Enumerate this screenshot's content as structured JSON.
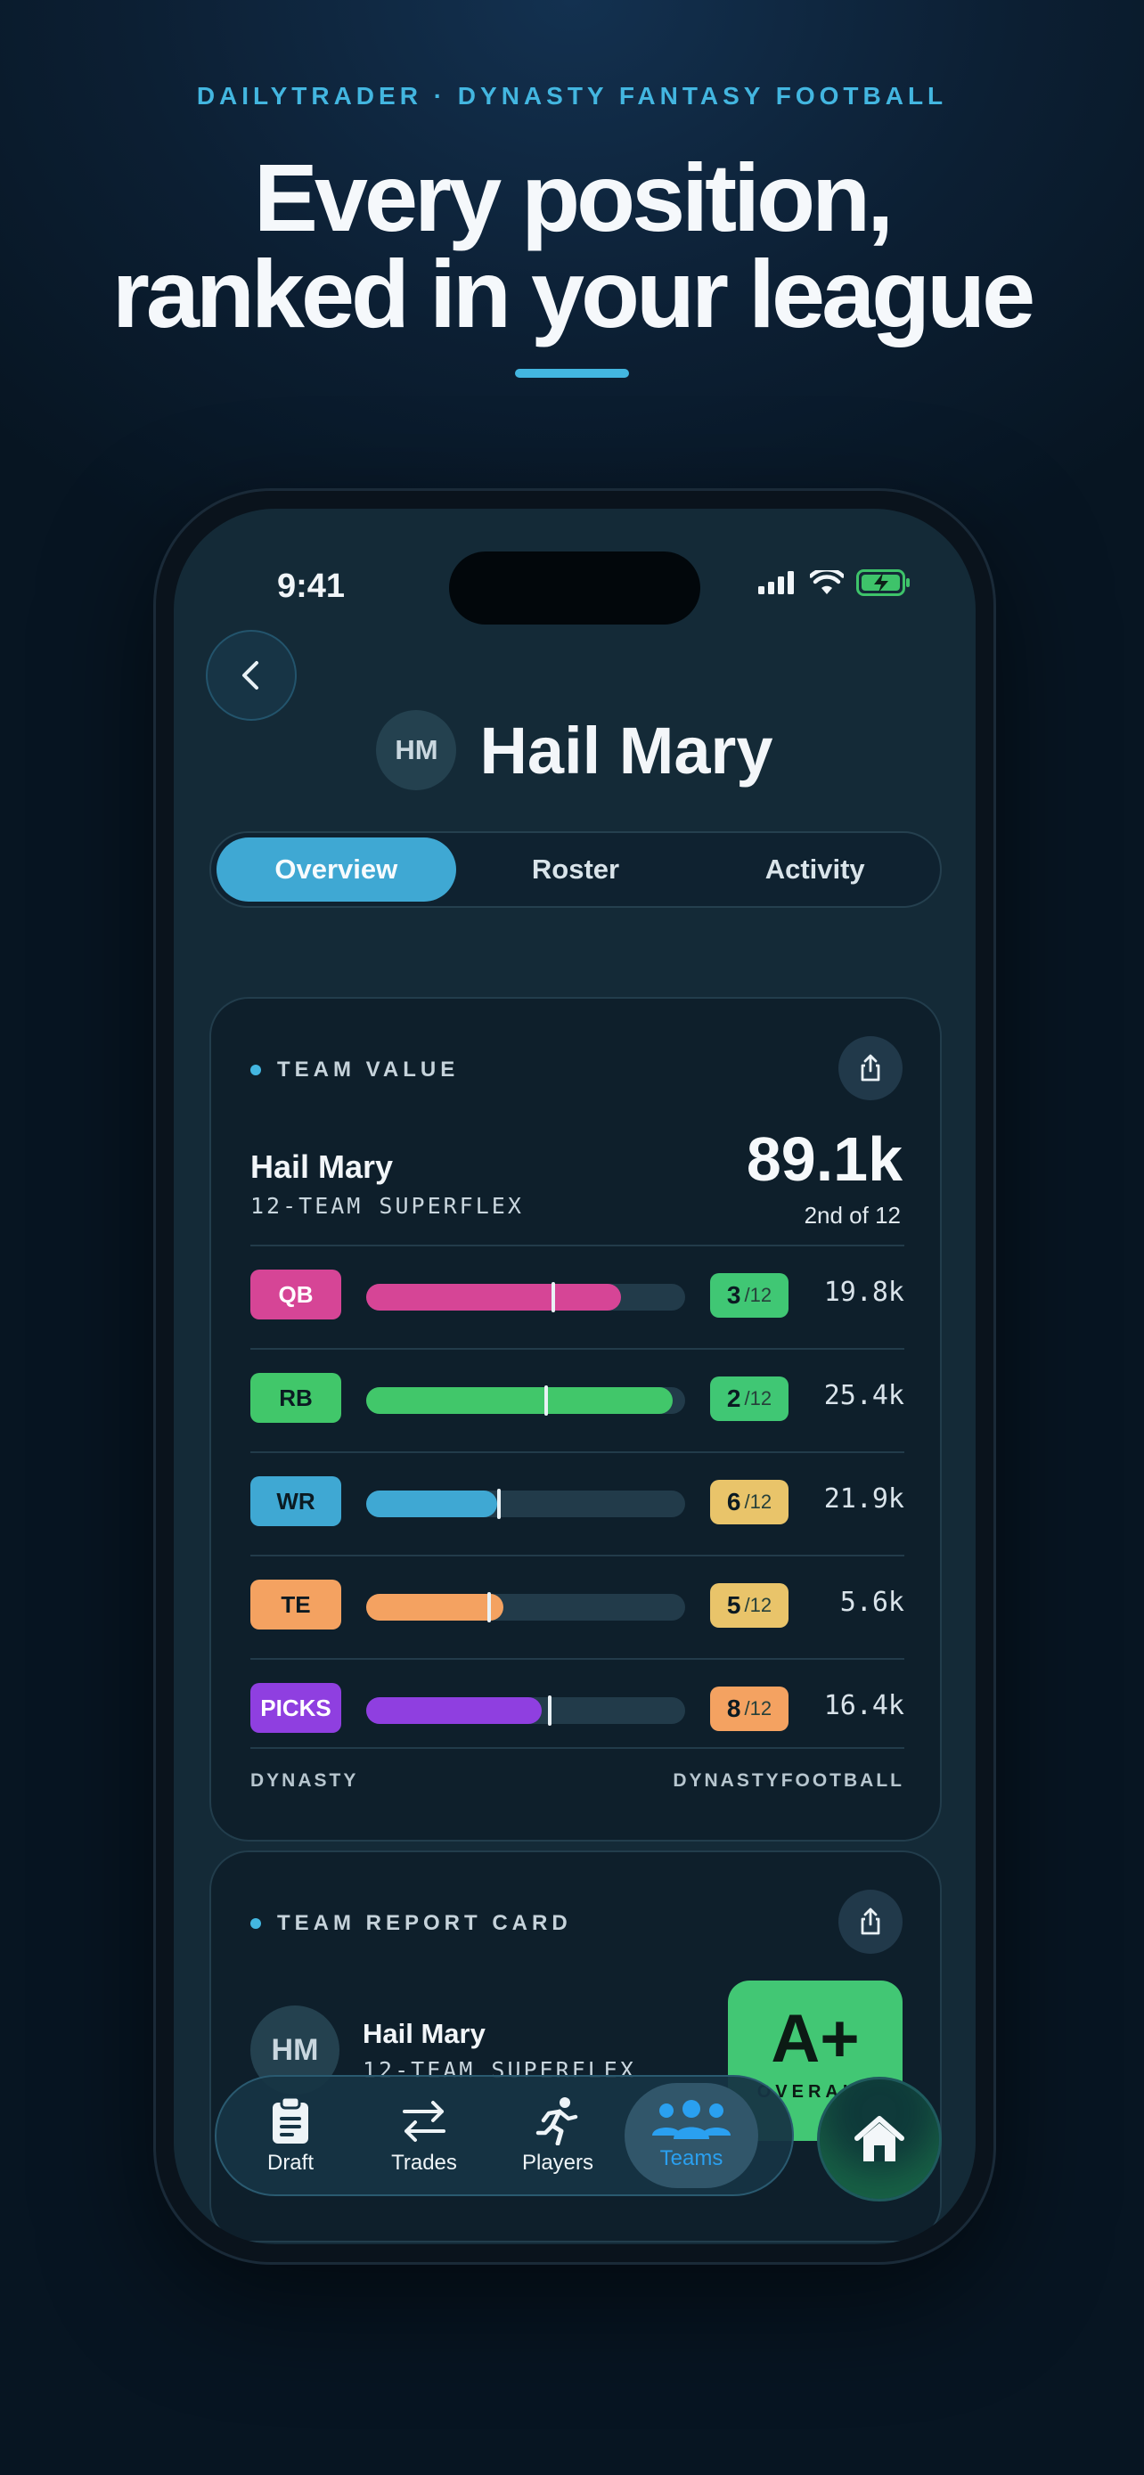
{
  "promo": {
    "eyebrow": "DAILYTRADER · DYNASTY FANTASY FOOTBALL",
    "headline_line1": "Every position,",
    "headline_line2": "ranked in your league"
  },
  "status_bar": {
    "time": "9:41"
  },
  "team": {
    "initials": "HM",
    "name": "Hail Mary"
  },
  "tabs": [
    {
      "label": "Overview",
      "active": true
    },
    {
      "label": "Roster",
      "active": false
    },
    {
      "label": "Activity",
      "active": false
    }
  ],
  "team_value": {
    "section_label": "TEAM VALUE",
    "team_name": "Hail Mary",
    "league": "12-TEAM SUPERFLEX",
    "total": "89.1k",
    "rank_text": "2nd of 12",
    "positions": [
      {
        "pos": "QB",
        "rank": "3",
        "of": "/12",
        "value": "19.8k",
        "fill": 0.8,
        "avg": 0.58,
        "color": "#d64596",
        "rank_color": "#40c774"
      },
      {
        "pos": "RB",
        "rank": "2",
        "of": "/12",
        "value": "25.4k",
        "fill": 0.96,
        "avg": 0.56,
        "color": "#41c76a",
        "rank_color": "#40c774"
      },
      {
        "pos": "WR",
        "rank": "6",
        "of": "/12",
        "value": "21.9k",
        "fill": 0.41,
        "avg": 0.41,
        "color": "#3fa8d3",
        "rank_color": "#e9c46a"
      },
      {
        "pos": "TE",
        "rank": "5",
        "of": "/12",
        "value": "5.6k",
        "fill": 0.43,
        "avg": 0.38,
        "color": "#f4a261",
        "rank_color": "#e9c46a"
      },
      {
        "pos": "PICKS",
        "rank": "8",
        "of": "/12",
        "value": "16.4k",
        "fill": 0.55,
        "avg": 0.57,
        "color": "#8f3fe0",
        "rank_color": "#f4a261"
      }
    ],
    "footer_left": "DYNASTY",
    "footer_right": "DYNASTYFOOTBALL"
  },
  "report_card": {
    "section_label": "TEAM REPORT CARD",
    "initials": "HM",
    "team_name": "Hail Mary",
    "league": "12-TEAM SUPERFLEX",
    "grade": "A+",
    "grade_label": "OVERALL"
  },
  "tab_bar": [
    {
      "label": "Draft",
      "icon": "clipboard-icon",
      "active": false
    },
    {
      "label": "Trades",
      "icon": "swap-arrows-icon",
      "active": false
    },
    {
      "label": "Players",
      "icon": "running-player-icon",
      "active": false
    },
    {
      "label": "Teams",
      "icon": "people-group-icon",
      "active": true
    }
  ],
  "home_button": {
    "icon": "home-icon"
  }
}
